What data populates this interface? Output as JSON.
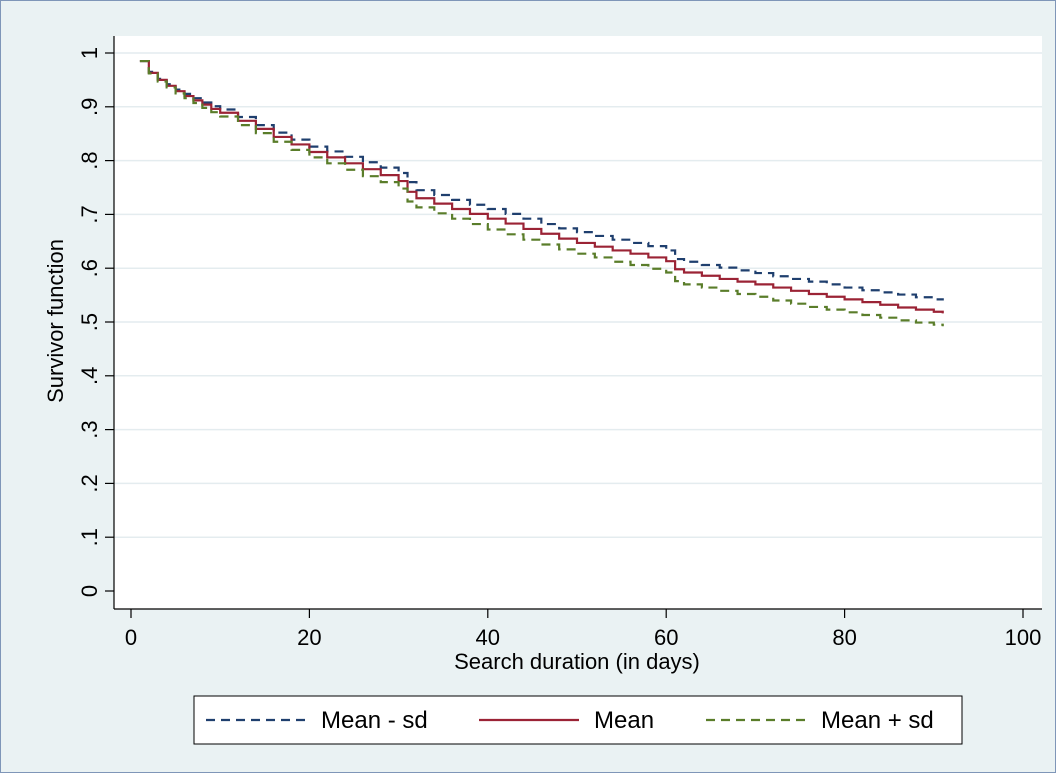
{
  "chart_data": {
    "type": "line",
    "title": "",
    "xlabel": "Search duration (in days)",
    "ylabel": "Survivor function",
    "xlim": [
      0,
      100
    ],
    "ylim": [
      0,
      1
    ],
    "x_ticks": [
      0,
      20,
      40,
      60,
      80,
      100
    ],
    "y_ticks": [
      0,
      0.1,
      0.2,
      0.3,
      0.4,
      0.5,
      0.6,
      0.7,
      0.8,
      0.9,
      1
    ],
    "x_tick_labels": [
      "0",
      "20",
      "40",
      "60",
      "80",
      "100"
    ],
    "y_tick_labels": [
      "0",
      ".1",
      ".2",
      ".3",
      ".4",
      ".5",
      ".6",
      ".7",
      ".8",
      ".9",
      "1"
    ],
    "grid": "horizontal",
    "legend_position": "bottom",
    "x": [
      1,
      2,
      3,
      4,
      5,
      6,
      7,
      8,
      9,
      10,
      12,
      14,
      16,
      18,
      20,
      22,
      24,
      26,
      28,
      30,
      31,
      32,
      34,
      36,
      38,
      40,
      42,
      44,
      46,
      48,
      50,
      52,
      54,
      56,
      58,
      60,
      61,
      62,
      64,
      66,
      68,
      70,
      72,
      74,
      76,
      78,
      80,
      82,
      84,
      86,
      88,
      90,
      91
    ],
    "series": [
      {
        "name": "Mean - sd",
        "color": "#1f3f6e",
        "dash": "dashed",
        "values": [
          0.985,
          0.965,
          0.952,
          0.942,
          0.932,
          0.924,
          0.916,
          0.908,
          0.901,
          0.895,
          0.881,
          0.866,
          0.852,
          0.839,
          0.826,
          0.817,
          0.807,
          0.797,
          0.787,
          0.777,
          0.76,
          0.745,
          0.736,
          0.727,
          0.718,
          0.71,
          0.701,
          0.692,
          0.682,
          0.674,
          0.667,
          0.66,
          0.653,
          0.647,
          0.641,
          0.633,
          0.617,
          0.612,
          0.606,
          0.601,
          0.596,
          0.591,
          0.585,
          0.58,
          0.575,
          0.57,
          0.564,
          0.559,
          0.555,
          0.551,
          0.546,
          0.542,
          0.54
        ]
      },
      {
        "name": "Mean",
        "color": "#9b2335",
        "dash": "solid",
        "values": [
          0.985,
          0.963,
          0.95,
          0.939,
          0.929,
          0.92,
          0.912,
          0.904,
          0.896,
          0.889,
          0.874,
          0.859,
          0.844,
          0.83,
          0.816,
          0.806,
          0.795,
          0.784,
          0.773,
          0.762,
          0.742,
          0.73,
          0.72,
          0.71,
          0.701,
          0.692,
          0.683,
          0.673,
          0.664,
          0.655,
          0.647,
          0.64,
          0.633,
          0.627,
          0.62,
          0.613,
          0.598,
          0.592,
          0.586,
          0.58,
          0.575,
          0.57,
          0.564,
          0.558,
          0.552,
          0.547,
          0.542,
          0.537,
          0.532,
          0.527,
          0.523,
          0.519,
          0.516
        ]
      },
      {
        "name": "Mean + sd",
        "color": "#5a7d2a",
        "dash": "dashed",
        "values": [
          0.985,
          0.962,
          0.947,
          0.936,
          0.925,
          0.916,
          0.907,
          0.898,
          0.89,
          0.882,
          0.866,
          0.851,
          0.835,
          0.82,
          0.806,
          0.795,
          0.783,
          0.771,
          0.76,
          0.748,
          0.724,
          0.713,
          0.702,
          0.692,
          0.682,
          0.672,
          0.663,
          0.653,
          0.644,
          0.635,
          0.627,
          0.62,
          0.612,
          0.606,
          0.599,
          0.592,
          0.576,
          0.57,
          0.564,
          0.558,
          0.552,
          0.547,
          0.54,
          0.534,
          0.528,
          0.523,
          0.518,
          0.513,
          0.508,
          0.503,
          0.499,
          0.495,
          0.492
        ]
      }
    ]
  }
}
